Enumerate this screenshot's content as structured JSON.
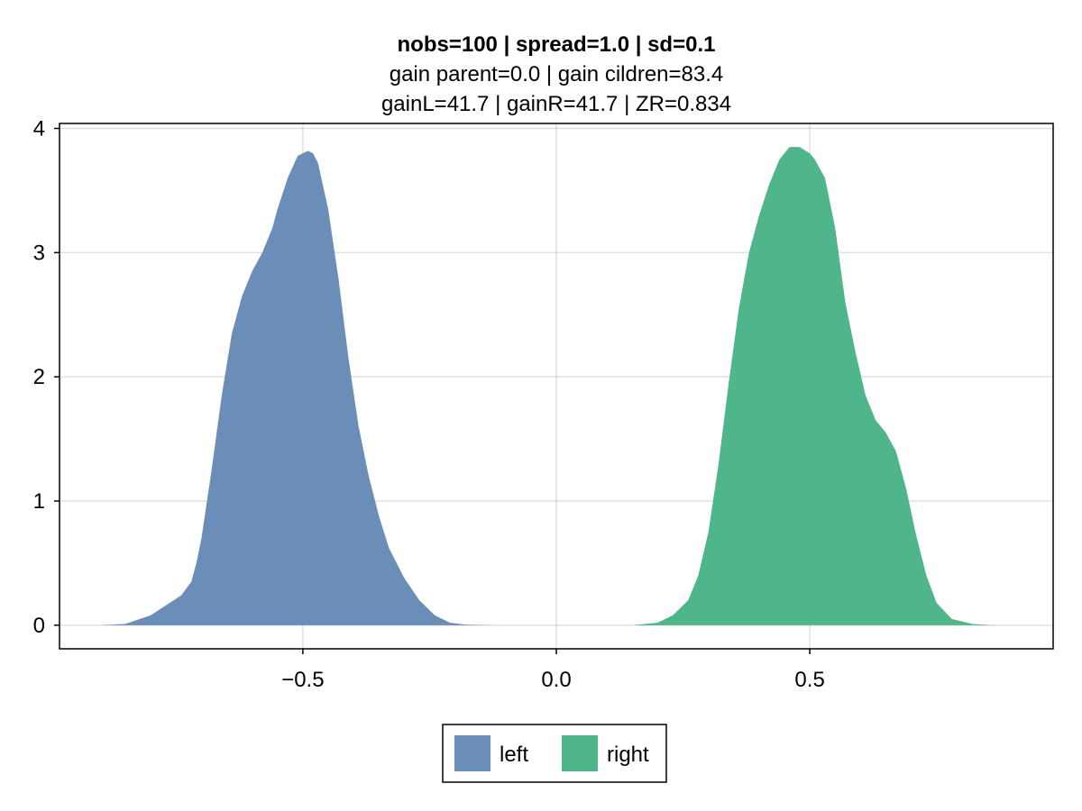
{
  "chart_data": {
    "type": "area",
    "title": "nobs=100 | spread=1.0 | sd=0.1",
    "subtitle_lines": [
      "gain parent=0.0 | gain cildren=83.4",
      "gainL=41.7 | gainR=41.7 | ZR=0.834"
    ],
    "xlabel": "",
    "ylabel": "",
    "xlim": [
      -0.98,
      0.98
    ],
    "ylim": [
      -0.19,
      4.04
    ],
    "x_ticks": [
      -0.5,
      0.0,
      0.5
    ],
    "x_tick_labels": [
      "−0.5",
      "0.0",
      "0.5"
    ],
    "y_ticks": [
      0,
      1,
      2,
      3,
      4
    ],
    "y_tick_labels": [
      "0",
      "1",
      "2",
      "3",
      "4"
    ],
    "grid": true,
    "legend": {
      "placement": "bottom-center",
      "orientation": "horizontal"
    },
    "series": [
      {
        "name": "left",
        "color": "#6b8eb8",
        "x": [
          -0.9,
          -0.85,
          -0.8,
          -0.77,
          -0.74,
          -0.72,
          -0.71,
          -0.7,
          -0.68,
          -0.66,
          -0.64,
          -0.62,
          -0.6,
          -0.58,
          -0.56,
          -0.55,
          -0.53,
          -0.51,
          -0.49,
          -0.48,
          -0.47,
          -0.45,
          -0.43,
          -0.41,
          -0.39,
          -0.37,
          -0.35,
          -0.33,
          -0.3,
          -0.27,
          -0.24,
          -0.21,
          -0.18,
          -0.15,
          -0.12
        ],
        "y": [
          0.0,
          0.01,
          0.08,
          0.16,
          0.24,
          0.35,
          0.5,
          0.7,
          1.25,
          1.85,
          2.35,
          2.65,
          2.85,
          3.0,
          3.2,
          3.35,
          3.6,
          3.78,
          3.82,
          3.8,
          3.72,
          3.35,
          2.8,
          2.15,
          1.6,
          1.2,
          0.88,
          0.62,
          0.38,
          0.2,
          0.08,
          0.02,
          0.005,
          0.001,
          0.0
        ]
      },
      {
        "name": "right",
        "color": "#4fb58a",
        "x": [
          0.15,
          0.2,
          0.23,
          0.26,
          0.28,
          0.3,
          0.32,
          0.34,
          0.36,
          0.38,
          0.4,
          0.42,
          0.44,
          0.46,
          0.48,
          0.5,
          0.51,
          0.53,
          0.55,
          0.57,
          0.59,
          0.61,
          0.63,
          0.65,
          0.67,
          0.69,
          0.71,
          0.73,
          0.75,
          0.78,
          0.82,
          0.86
        ],
        "y": [
          0.0,
          0.02,
          0.08,
          0.2,
          0.4,
          0.75,
          1.3,
          1.95,
          2.55,
          3.0,
          3.3,
          3.55,
          3.75,
          3.85,
          3.85,
          3.8,
          3.75,
          3.6,
          3.2,
          2.6,
          2.2,
          1.85,
          1.65,
          1.55,
          1.4,
          1.1,
          0.72,
          0.4,
          0.18,
          0.05,
          0.01,
          0.0
        ]
      }
    ]
  }
}
